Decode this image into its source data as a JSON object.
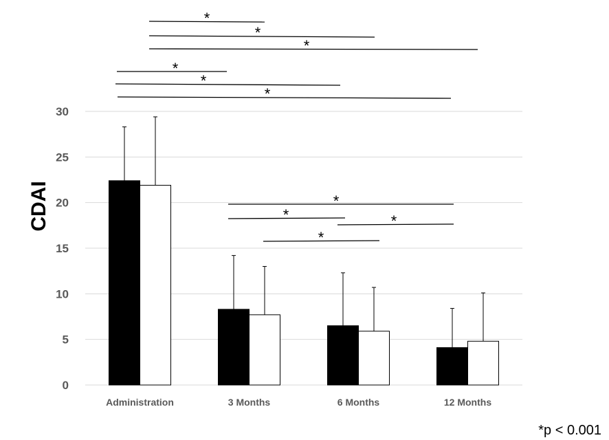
{
  "chart_data": {
    "type": "bar",
    "ylabel": "CDAI",
    "xlabel": "",
    "title": "",
    "ylim": [
      0,
      30
    ],
    "yticks": [
      0,
      5,
      10,
      15,
      20,
      25,
      30
    ],
    "grid": true,
    "categories": [
      "Administration",
      "3 Months",
      "6 Months",
      "12 Months"
    ],
    "series": [
      {
        "color": "#000000",
        "values": [
          22.4,
          8.3,
          6.5,
          4.1
        ],
        "errors": [
          5.9,
          5.9,
          5.8,
          4.3
        ]
      },
      {
        "color": "#ffffff",
        "values": [
          21.9,
          7.7,
          5.9,
          4.8
        ],
        "errors": [
          7.5,
          5.3,
          4.8,
          5.3
        ]
      }
    ],
    "significance": [
      {
        "from": "Administration",
        "to": "3 Months",
        "label": "*"
      },
      {
        "from": "Administration",
        "to": "6 Months",
        "label": "*"
      },
      {
        "from": "Administration",
        "to": "12 Months",
        "label": "*"
      },
      {
        "from": "Administration",
        "to": "3 Months",
        "label": "*"
      },
      {
        "from": "Administration",
        "to": "6 Months",
        "label": "*"
      },
      {
        "from": "Administration",
        "to": "12 Months",
        "label": "*"
      },
      {
        "from": "3 Months",
        "to": "12 Months",
        "label": "*"
      },
      {
        "from": "3 Months",
        "to": "6 Months",
        "label": "*"
      },
      {
        "from": "6 Months",
        "to": "12 Months",
        "label": "*"
      },
      {
        "from": "3 Months",
        "to": "6 Months",
        "label": "*"
      }
    ],
    "footnote": "*p < 0.001"
  }
}
